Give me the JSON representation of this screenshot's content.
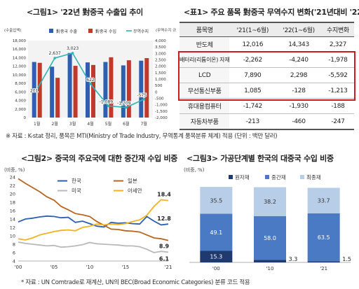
{
  "fig1": {
    "title": "<그림1> '22년 對중국 수출입 추이",
    "left_unit": "(수출입액)",
    "right_unit": "(무역수지 규모)",
    "source": "※ 자료 : K-stat 정리, 품목은 MTI(Ministry of Trade Industry, 무역통계 품목분류 체계) 적용 (단위 : 백만 달러)"
  },
  "table1": {
    "title": "<표1> 주요 품목 對중국 무역수지 변화('21년대비 '22년)",
    "headers": [
      "품목명",
      "'21(1~6월)",
      "'22(1~6월)",
      "수지변화"
    ],
    "rows": [
      {
        "item": "반도체",
        "v21": "12,016",
        "v22": "14,343",
        "chg": "2,327"
      },
      {
        "item": "배터리(리튬이온) 자재",
        "v21": "-2,262",
        "v22": "-4,240",
        "chg": "-1,978"
      },
      {
        "item": "LCD",
        "v21": "7,890",
        "v22": "2,298",
        "chg": "-5,592"
      },
      {
        "item": "무선통신부품",
        "v21": "1,085",
        "v22": "-128",
        "chg": "-1,213"
      },
      {
        "item": "휴대용컴퓨터",
        "v21": "-1,742",
        "v22": "-1,930",
        "chg": "-188"
      },
      {
        "item": "자동차부품",
        "v21": "-213",
        "v22": "-460",
        "chg": "-247"
      }
    ]
  },
  "fig2": {
    "title": "<그림2> 중국의 주요국에 대한 중간재 수입 비중",
    "unit": "(비중, %)",
    "source": "* 자료 : UN Comtrade로 재계산, UN의 BEC(Broad Economic Categories) 분류 코드 적용"
  },
  "fig3": {
    "title": "<그림3> 가공단계별 한국의 대중국 수입 비중",
    "unit": "(비중, %)"
  },
  "chart_data": [
    {
      "type": "bar",
      "title": "'22년 對중국 수출입 추이",
      "categories": [
        "1월",
        "2월",
        "3월",
        "4월",
        "5월",
        "6월",
        "7월"
      ],
      "ylim": [
        0,
        18000
      ],
      "yticks": [
        "0",
        "2,000",
        "4,000",
        "6,000",
        "8,000",
        "10,000",
        "12,000",
        "14,000",
        "16,000",
        "18,000"
      ],
      "y2lim": [
        -2000,
        4000
      ],
      "y2ticks": [
        "-2,000",
        "-1,500",
        "-1,000",
        "-500",
        "0",
        "500",
        "1,000",
        "1,500",
        "2,000",
        "2,500",
        "3,000",
        "3,500",
        "4,000"
      ],
      "series": [
        {
          "name": "對중국 수출",
          "color": "#2e5fb0",
          "values": [
            13000,
            11900,
            15100,
            12900,
            13000,
            12200,
            13300
          ]
        },
        {
          "name": "對중국 수입",
          "color": "#c0392b",
          "values": [
            12800,
            9300,
            12100,
            12300,
            14100,
            13400,
            13900
          ]
        },
        {
          "name": "무역수지",
          "type": "line",
          "color": "#2fb5b5",
          "values": [
            201,
            2637,
            3023,
            622,
            -1089,
            -1209,
            -575
          ],
          "labels": [
            "201",
            "2,637",
            "3,023",
            "622",
            "-1,089",
            "-1,209",
            "-575"
          ]
        }
      ]
    },
    {
      "type": "line",
      "title": "중국의 주요국에 대한 중간재 수입 비중",
      "x": [
        2000,
        2001,
        2002,
        2003,
        2004,
        2005,
        2006,
        2007,
        2008,
        2009,
        2010,
        2011,
        2012,
        2013,
        2014,
        2015,
        2016,
        2017,
        2018,
        2019,
        2020,
        2021
      ],
      "xticks": [
        "'00",
        "'05",
        "'10",
        "'15",
        "'21"
      ],
      "ylim": [
        4,
        24
      ],
      "yticks": [
        "4",
        "6",
        "8",
        "10",
        "12",
        "14",
        "16",
        "18",
        "20",
        "22",
        "24"
      ],
      "series": [
        {
          "name": "한국",
          "color": "#2e5fb0",
          "values": [
            13.3,
            14.0,
            14.2,
            14.5,
            14.7,
            14.6,
            14.3,
            14.4,
            13.2,
            13.5,
            12.9,
            12.3,
            12.1,
            13.2,
            13.0,
            13.1,
            12.9,
            12.8,
            14.6,
            13.5,
            12.6,
            12.8
          ],
          "end_label": "12.8"
        },
        {
          "name": "일본",
          "color": "#b8651f",
          "values": [
            23.6,
            22.5,
            21.5,
            20.5,
            19.3,
            18.5,
            17.0,
            16.2,
            15.3,
            15.0,
            14.6,
            13.4,
            12.5,
            11.6,
            11.5,
            11.2,
            11.1,
            10.9,
            10.2,
            9.5,
            9.3,
            8.9
          ],
          "end_label": "8.9"
        },
        {
          "name": "미국",
          "color": "#b9b9b9",
          "values": [
            8.5,
            8.2,
            8.0,
            7.8,
            7.6,
            7.7,
            7.3,
            7.4,
            7.6,
            7.9,
            8.4,
            8.1,
            8.0,
            7.9,
            7.8,
            7.6,
            7.6,
            7.4,
            6.8,
            6.0,
            6.3,
            6.1
          ],
          "end_label": "6.1"
        },
        {
          "name": "아세안",
          "color": "#f2b320",
          "values": [
            9.3,
            9.0,
            9.5,
            10.2,
            10.6,
            11.0,
            11.3,
            11.4,
            11.2,
            12.0,
            12.3,
            12.8,
            12.6,
            12.8,
            12.7,
            12.9,
            13.4,
            13.8,
            14.9,
            17.0,
            18.6,
            18.4
          ],
          "end_label": "18.4"
        }
      ]
    },
    {
      "type": "bar",
      "stacked": true,
      "title": "가공단계별 한국의 대중국 수입 비중",
      "categories": [
        "'00",
        "'10",
        "'21"
      ],
      "ylim": [
        0,
        100
      ],
      "series": [
        {
          "name": "원자재",
          "color": "#1f3a6e",
          "values": [
            15.3,
            3.3,
            1.5
          ]
        },
        {
          "name": "중간재",
          "color": "#4a7ac4",
          "values": [
            49.1,
            58.0,
            63.5
          ]
        },
        {
          "name": "최종재",
          "color": "#b8cde8",
          "values": [
            35.5,
            38.2,
            33.7
          ]
        }
      ]
    }
  ]
}
